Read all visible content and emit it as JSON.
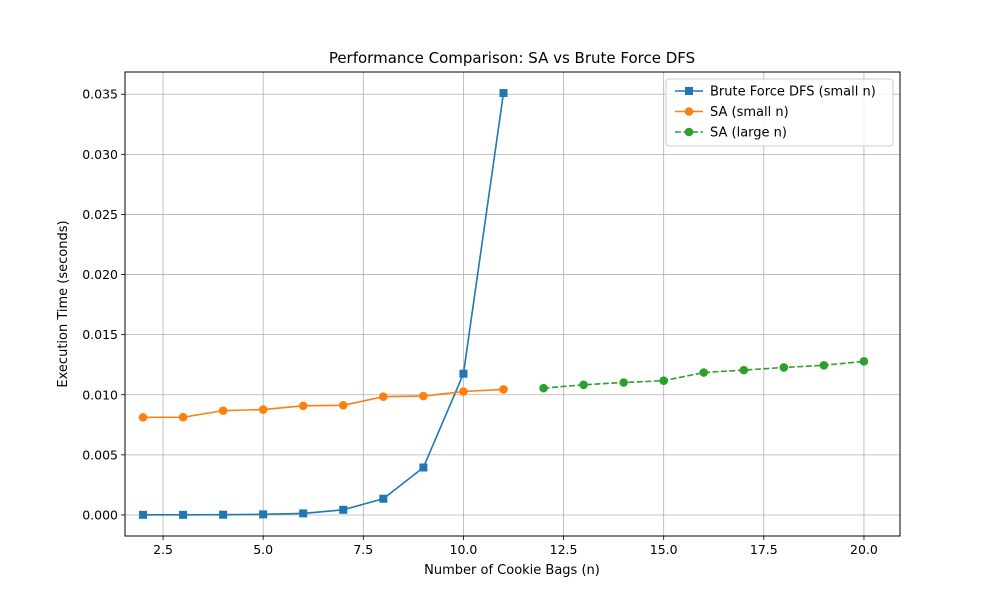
{
  "chart_data": {
    "type": "line",
    "title": "Performance Comparison: SA vs Brute Force DFS",
    "xlabel": "Number of Cookie Bags (n)",
    "ylabel": "Execution Time (seconds)",
    "xlim": [
      1.55,
      20.9
    ],
    "ylim": [
      -0.00175,
      0.03685
    ],
    "xticks": [
      2.5,
      5.0,
      7.5,
      10.0,
      12.5,
      15.0,
      17.5,
      20.0
    ],
    "xtick_labels": [
      "2.5",
      "5.0",
      "7.5",
      "10.0",
      "12.5",
      "15.0",
      "17.5",
      "20.0"
    ],
    "yticks": [
      0.0,
      0.005,
      0.01,
      0.015,
      0.02,
      0.025,
      0.03,
      0.035
    ],
    "ytick_labels": [
      "0.000",
      "0.005",
      "0.010",
      "0.015",
      "0.020",
      "0.025",
      "0.030",
      "0.035"
    ],
    "grid": true,
    "legend_position": "top-right",
    "series": [
      {
        "name": "Brute Force DFS (small n)",
        "color": "#1f77b4",
        "marker": "square",
        "linestyle": "solid",
        "x": [
          2,
          3,
          4,
          5,
          6,
          7,
          8,
          9,
          10,
          11
        ],
        "y": [
          1e-05,
          1e-05,
          2e-05,
          5e-05,
          0.00013,
          0.00043,
          0.00135,
          0.00395,
          0.01175,
          0.0351
        ]
      },
      {
        "name": "SA (small n)",
        "color": "#ff7f0e",
        "marker": "circle",
        "linestyle": "solid",
        "x": [
          2,
          3,
          4,
          5,
          6,
          7,
          8,
          9,
          10,
          11
        ],
        "y": [
          0.00812,
          0.00813,
          0.00868,
          0.00877,
          0.00908,
          0.00912,
          0.00984,
          0.00989,
          0.01027,
          0.01044
        ]
      },
      {
        "name": "SA (large n)",
        "color": "#2ca02c",
        "marker": "circle",
        "linestyle": "dashed",
        "x": [
          12,
          13,
          14,
          15,
          16,
          17,
          18,
          19,
          20
        ],
        "y": [
          0.01055,
          0.01083,
          0.01102,
          0.01117,
          0.01185,
          0.01205,
          0.01227,
          0.01245,
          0.01278
        ]
      }
    ]
  }
}
